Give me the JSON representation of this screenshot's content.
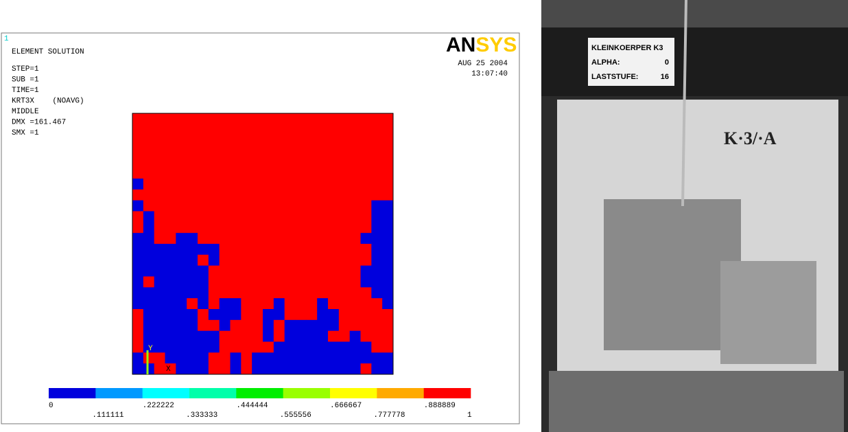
{
  "header": {
    "plot_number": "1",
    "title": "ELEMENT SOLUTION",
    "logo_an": "AN",
    "logo_sys": "SYS",
    "date": "AUG 25 2004",
    "time": "13:07:40"
  },
  "info_lines": [
    "STEP=1",
    "SUB =1",
    "TIME=1",
    "KRT3X    (NOAVG)",
    "MIDDLE",
    "DMX =161.467",
    "SMX =1"
  ],
  "triad": {
    "y": "Y",
    "x": "X"
  },
  "element_grid": {
    "low_color": "#0000dd",
    "high_color": "#ff0000",
    "rows": [
      [
        1,
        1,
        1,
        1,
        1,
        1,
        1,
        1,
        1,
        1,
        1,
        1,
        1,
        1,
        1,
        1,
        1,
        1,
        1,
        1,
        1,
        1,
        1,
        1
      ],
      [
        1,
        1,
        1,
        1,
        1,
        1,
        1,
        1,
        1,
        1,
        1,
        1,
        1,
        1,
        1,
        1,
        1,
        1,
        1,
        1,
        1,
        1,
        1,
        1
      ],
      [
        1,
        1,
        1,
        1,
        1,
        1,
        1,
        1,
        1,
        1,
        1,
        1,
        1,
        1,
        1,
        1,
        1,
        1,
        1,
        1,
        1,
        1,
        1,
        1
      ],
      [
        1,
        1,
        1,
        1,
        1,
        1,
        1,
        1,
        1,
        1,
        1,
        1,
        1,
        1,
        1,
        1,
        1,
        1,
        1,
        1,
        1,
        1,
        1,
        1
      ],
      [
        1,
        1,
        1,
        1,
        1,
        1,
        1,
        1,
        1,
        1,
        1,
        1,
        1,
        1,
        1,
        1,
        1,
        1,
        1,
        1,
        1,
        1,
        1,
        1
      ],
      [
        1,
        1,
        1,
        1,
        1,
        1,
        1,
        1,
        1,
        1,
        1,
        1,
        1,
        1,
        1,
        1,
        1,
        1,
        1,
        1,
        1,
        1,
        1,
        1
      ],
      [
        0,
        1,
        1,
        1,
        1,
        1,
        1,
        1,
        1,
        1,
        1,
        1,
        1,
        1,
        1,
        1,
        1,
        1,
        1,
        1,
        1,
        1,
        1,
        1
      ],
      [
        1,
        1,
        1,
        1,
        1,
        1,
        1,
        1,
        1,
        1,
        1,
        1,
        1,
        1,
        1,
        1,
        1,
        1,
        1,
        1,
        1,
        1,
        1,
        1
      ],
      [
        0,
        1,
        1,
        1,
        1,
        1,
        1,
        1,
        1,
        1,
        1,
        1,
        1,
        1,
        1,
        1,
        1,
        1,
        1,
        1,
        1,
        1,
        0,
        0
      ],
      [
        1,
        0,
        1,
        1,
        1,
        1,
        1,
        1,
        1,
        1,
        1,
        1,
        1,
        1,
        1,
        1,
        1,
        1,
        1,
        1,
        1,
        1,
        0,
        0
      ],
      [
        1,
        0,
        1,
        1,
        1,
        1,
        1,
        1,
        1,
        1,
        1,
        1,
        1,
        1,
        1,
        1,
        1,
        1,
        1,
        1,
        1,
        1,
        0,
        0
      ],
      [
        0,
        0,
        1,
        1,
        0,
        0,
        1,
        1,
        1,
        1,
        1,
        1,
        1,
        1,
        1,
        1,
        1,
        1,
        1,
        1,
        1,
        0,
        0,
        0
      ],
      [
        0,
        0,
        0,
        0,
        0,
        0,
        0,
        0,
        1,
        1,
        1,
        1,
        1,
        1,
        1,
        1,
        1,
        1,
        1,
        1,
        1,
        1,
        0,
        0
      ],
      [
        0,
        0,
        0,
        0,
        0,
        0,
        1,
        0,
        1,
        1,
        1,
        1,
        1,
        1,
        1,
        1,
        1,
        1,
        1,
        1,
        1,
        1,
        0,
        0
      ],
      [
        0,
        0,
        0,
        0,
        0,
        0,
        0,
        1,
        1,
        1,
        1,
        1,
        1,
        1,
        1,
        1,
        1,
        1,
        1,
        1,
        1,
        0,
        0,
        0
      ],
      [
        0,
        1,
        0,
        0,
        0,
        0,
        0,
        1,
        1,
        1,
        1,
        1,
        1,
        1,
        1,
        1,
        1,
        1,
        1,
        1,
        1,
        0,
        0,
        0
      ],
      [
        0,
        0,
        0,
        0,
        0,
        0,
        0,
        1,
        1,
        1,
        1,
        1,
        1,
        1,
        1,
        1,
        1,
        1,
        1,
        1,
        1,
        1,
        0,
        0
      ],
      [
        0,
        0,
        0,
        0,
        0,
        1,
        0,
        1,
        0,
        0,
        1,
        1,
        1,
        0,
        1,
        1,
        1,
        0,
        1,
        1,
        1,
        1,
        1,
        0
      ],
      [
        1,
        0,
        0,
        0,
        0,
        0,
        1,
        0,
        0,
        0,
        1,
        1,
        0,
        0,
        1,
        1,
        1,
        0,
        0,
        1,
        1,
        1,
        1,
        1
      ],
      [
        1,
        0,
        0,
        0,
        0,
        0,
        1,
        1,
        0,
        1,
        1,
        1,
        0,
        1,
        0,
        0,
        0,
        0,
        0,
        1,
        1,
        1,
        1,
        1
      ],
      [
        1,
        0,
        0,
        0,
        0,
        0,
        0,
        0,
        1,
        1,
        1,
        1,
        0,
        1,
        0,
        0,
        0,
        0,
        1,
        1,
        0,
        1,
        1,
        1
      ],
      [
        1,
        0,
        0,
        0,
        0,
        0,
        0,
        0,
        1,
        1,
        1,
        1,
        1,
        0,
        0,
        0,
        0,
        0,
        0,
        0,
        0,
        0,
        1,
        1
      ],
      [
        0,
        1,
        1,
        0,
        0,
        0,
        0,
        1,
        1,
        0,
        1,
        0,
        0,
        0,
        0,
        0,
        0,
        0,
        0,
        0,
        0,
        0,
        0,
        0
      ],
      [
        0,
        0,
        1,
        1,
        0,
        0,
        0,
        1,
        1,
        0,
        1,
        0,
        0,
        0,
        0,
        0,
        0,
        0,
        0,
        0,
        0,
        1,
        0,
        0
      ]
    ]
  },
  "legend": {
    "colors": [
      "#0000dd",
      "#0099ff",
      "#00ffff",
      "#00ffaa",
      "#00ee00",
      "#99ff00",
      "#ffff00",
      "#ffaa00",
      "#ff0000"
    ],
    "labels": [
      "0",
      ".111111",
      ".222222",
      ".333333",
      ".444444",
      ".555556",
      ".666667",
      ".777778",
      ".888889",
      "1"
    ]
  },
  "photo": {
    "sign_title": "KLEINKOERPER K3",
    "sign_rows": [
      [
        "ALPHA:",
        "0"
      ],
      [
        "LASTSTUFE:",
        "16"
      ]
    ],
    "specimen_label": "K·3/·A"
  }
}
